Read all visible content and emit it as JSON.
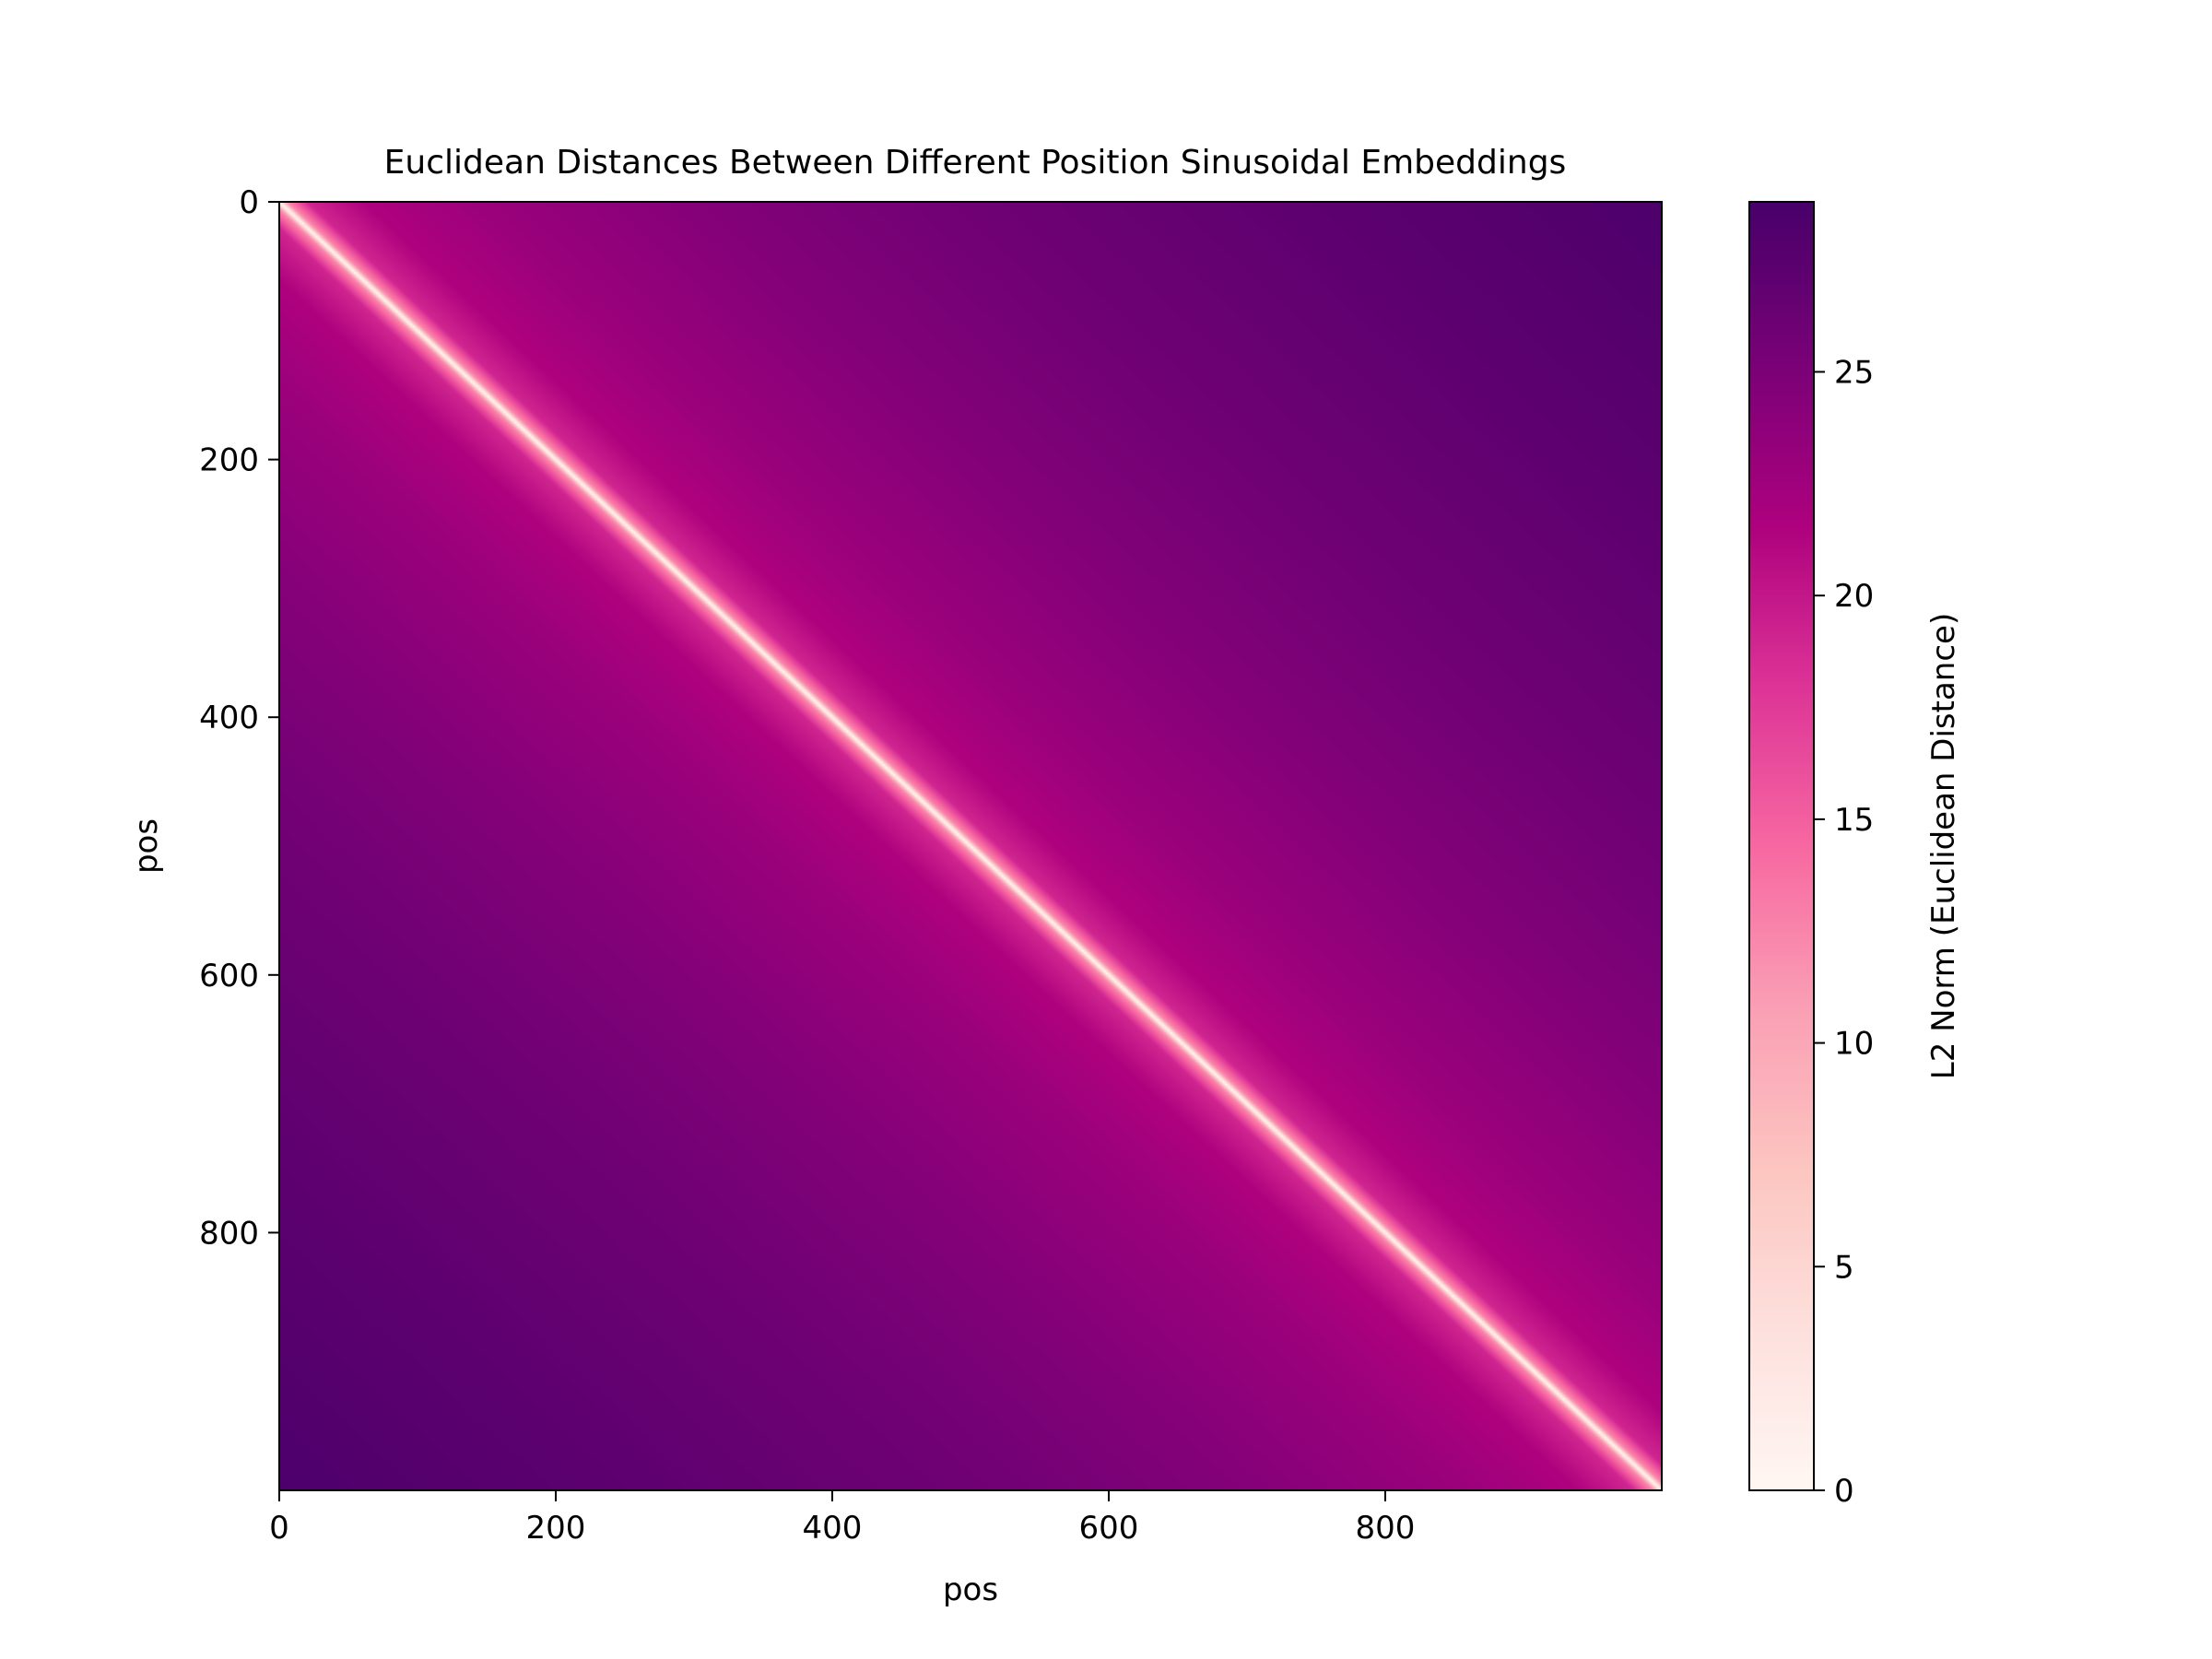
{
  "chart_data": {
    "type": "heatmap",
    "title": "Euclidean Distances Between Different Position Sinusoidal Embeddings",
    "xlabel": "pos",
    "ylabel": "pos",
    "xlim": [
      0,
      1000
    ],
    "ylim": [
      1000,
      0
    ],
    "y_axis_inverted": true,
    "xticks": [
      0,
      200,
      400,
      600,
      800
    ],
    "yticks": [
      0,
      200,
      400,
      600,
      800
    ],
    "grid": false,
    "matrix_size": [
      1000,
      1000
    ],
    "description_of_values": "distance is 0 on the diagonal (pos_i == pos_j) and increases with |pos_i - pos_j|",
    "distance_samples": [
      {
        "offset": 0,
        "value": 0
      },
      {
        "offset": 5,
        "value": 12
      },
      {
        "offset": 20,
        "value": 19
      },
      {
        "offset": 60,
        "value": 21.5
      },
      {
        "offset": 150,
        "value": 23
      },
      {
        "offset": 300,
        "value": 24.5
      },
      {
        "offset": 500,
        "value": 26
      },
      {
        "offset": 750,
        "value": 27.3
      },
      {
        "offset": 999,
        "value": 28.5
      }
    ],
    "colorbar": {
      "label": "L2 Norm (Euclidean Distance)",
      "min": 0,
      "max": 28.8,
      "ticks": [
        0,
        5,
        10,
        15,
        20,
        25
      ],
      "colormap": "RdPu",
      "colormap_stops": [
        "#fff7f3",
        "#fde0dd",
        "#fcc5c0",
        "#fa9fb5",
        "#f768a1",
        "#dd3497",
        "#ae017e",
        "#7a0177",
        "#49006a"
      ]
    }
  }
}
